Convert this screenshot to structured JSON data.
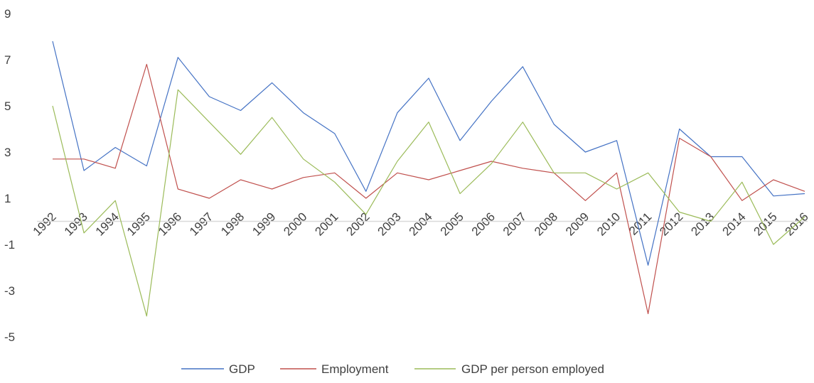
{
  "chart_data": {
    "type": "line",
    "title": "",
    "xlabel": "",
    "ylabel": "",
    "x": [
      "1992",
      "1993",
      "1994",
      "1995",
      "1996",
      "1997",
      "1998",
      "1999",
      "2000",
      "2001",
      "2002",
      "2003",
      "2004",
      "2005",
      "2006",
      "2007",
      "2008",
      "2009",
      "2010",
      "2011",
      "2012",
      "2013",
      "2014",
      "2015",
      "2016"
    ],
    "ylim": [
      -5,
      9
    ],
    "yticks": [
      9,
      7,
      5,
      3,
      1,
      -1,
      -3,
      -5
    ],
    "grid": false,
    "baseline_at_zero": true,
    "legend_position": "bottom",
    "series": [
      {
        "name": "GDP",
        "color": "#4472C4",
        "values": [
          7.8,
          2.2,
          3.2,
          2.4,
          7.1,
          5.4,
          4.8,
          6.0,
          4.7,
          3.8,
          1.3,
          4.7,
          6.2,
          3.5,
          5.2,
          6.7,
          4.2,
          3.0,
          3.5,
          -1.9,
          4.0,
          2.8,
          2.8,
          1.1,
          1.2
        ]
      },
      {
        "name": "Employment",
        "color": "#C0504D",
        "values": [
          2.7,
          2.7,
          2.3,
          6.8,
          1.4,
          1.0,
          1.8,
          1.4,
          1.9,
          2.1,
          1.0,
          2.1,
          1.8,
          2.2,
          2.6,
          2.3,
          2.1,
          0.9,
          2.1,
          -4.0,
          3.6,
          2.8,
          0.9,
          1.8,
          1.3
        ]
      },
      {
        "name": "GDP per person employed",
        "color": "#9BBB59",
        "values": [
          5.0,
          -0.5,
          0.9,
          -4.1,
          5.7,
          4.3,
          2.9,
          4.5,
          2.7,
          1.7,
          0.3,
          2.6,
          4.3,
          1.2,
          2.5,
          4.3,
          2.1,
          2.1,
          1.4,
          2.1,
          0.4,
          0.0,
          1.7,
          -1.0,
          0.2
        ]
      }
    ]
  }
}
